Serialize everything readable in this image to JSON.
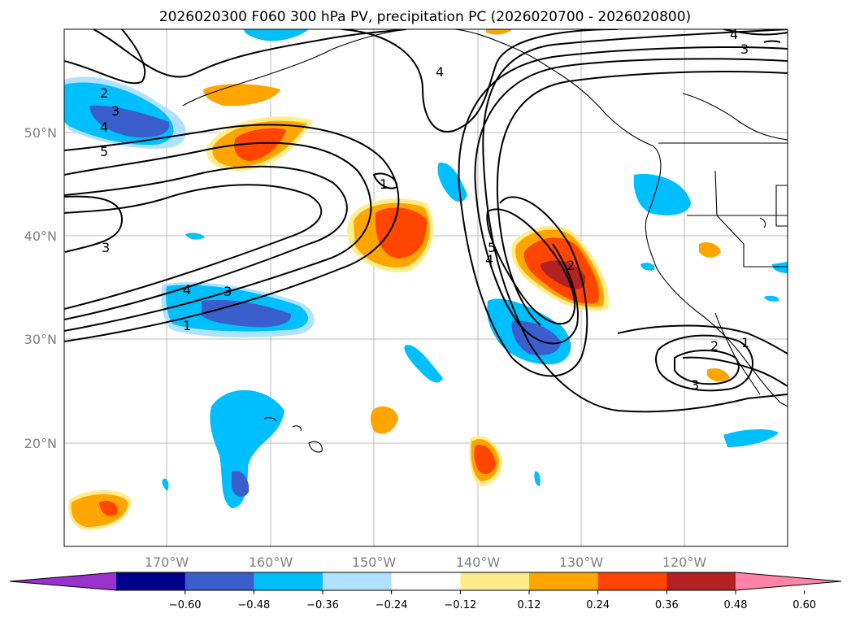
{
  "title": "2026020300 F060 300 hPa PV, precipitation PC (2026020700 - 2026020800)",
  "lon_labels": [
    "170°W",
    "160°W",
    "150°W",
    "140°W",
    "130°W",
    "120°W"
  ],
  "lat_labels": [
    "50°N",
    "40°N",
    "30°N",
    "20°N"
  ],
  "contour_labels": [
    "2",
    "3",
    "4",
    "5",
    "4",
    "3",
    "1",
    "3",
    "4",
    "1",
    "5",
    "4",
    "2",
    "4",
    "3",
    "2",
    "1",
    "3"
  ],
  "colorbar": {
    "ticks": [
      "−0.60",
      "−0.48",
      "−0.36",
      "−0.24",
      "−0.12",
      "0.12",
      "0.24",
      "0.36",
      "0.48",
      "0.60"
    ],
    "colors": [
      "#9932cc",
      "#00008b",
      "#3a5fcd",
      "#00bfff",
      "#b0e2ff",
      "#ffffff",
      "#ffec8b",
      "#ffa500",
      "#ff4500",
      "#b22222",
      "#ff82ab"
    ]
  }
}
